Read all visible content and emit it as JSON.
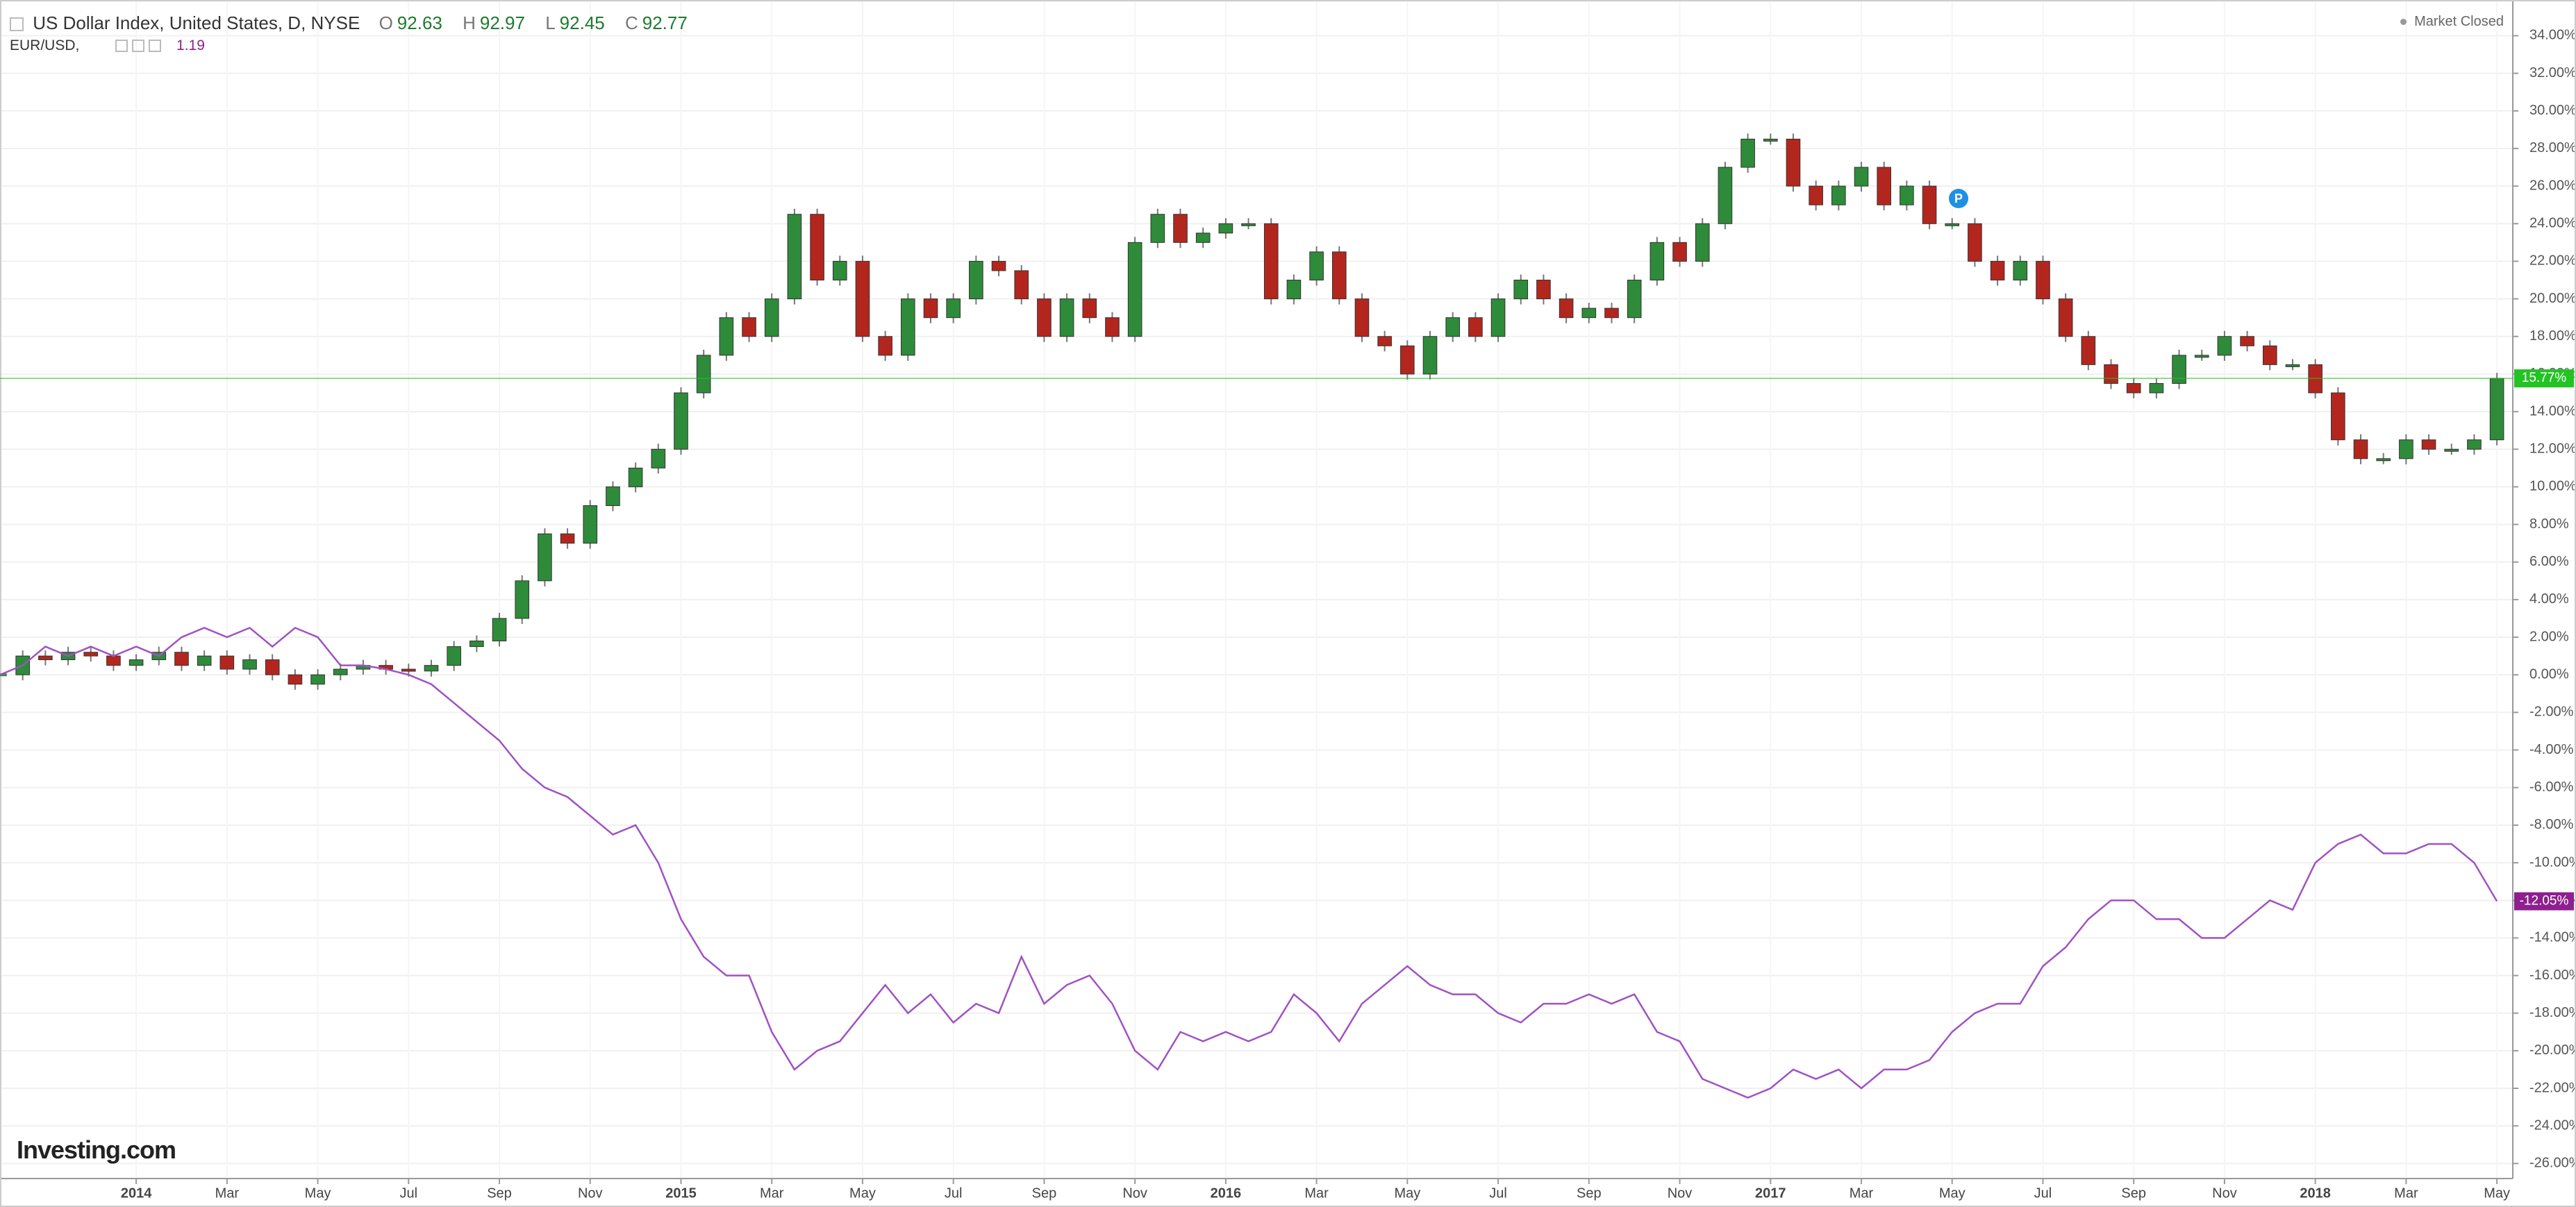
{
  "chart_data": {
    "type": "candle-line",
    "header": {
      "ohlc": [
        {
          "label": "O",
          "value": 92.63
        },
        {
          "label": "H",
          "value": 92.97
        },
        {
          "label": "L",
          "value": 92.45
        },
        {
          "label": "C",
          "value": 92.77
        }
      ],
      "compare_value": 1.19,
      "status": "Market Closed",
      "logo": "Investing.com",
      "marker": "P"
    },
    "xlim": [
      0,
      110.7
    ],
    "xticks": [
      {
        "value": 6,
        "label": "2014"
      },
      {
        "value": 10,
        "label": "Mar"
      },
      {
        "value": 14,
        "label": "May"
      },
      {
        "value": 18,
        "label": "Jul"
      },
      {
        "value": 22,
        "label": "Sep"
      },
      {
        "value": 26,
        "label": "Nov"
      },
      {
        "value": 30,
        "label": "2015"
      },
      {
        "value": 34,
        "label": "Mar"
      },
      {
        "value": 38,
        "label": "May"
      },
      {
        "value": 42,
        "label": "Jul"
      },
      {
        "value": 46,
        "label": "Sep"
      },
      {
        "value": 50,
        "label": "Nov"
      },
      {
        "value": 54,
        "label": "2016"
      },
      {
        "value": 58,
        "label": "Mar"
      },
      {
        "value": 62,
        "label": "May"
      },
      {
        "value": 66,
        "label": "Jul"
      },
      {
        "value": 70,
        "label": "Sep"
      },
      {
        "value": 74,
        "label": "Nov"
      },
      {
        "value": 78,
        "label": "2017"
      },
      {
        "value": 82,
        "label": "Mar"
      },
      {
        "value": 86,
        "label": "May"
      },
      {
        "value": 90,
        "label": "Jul"
      },
      {
        "value": 94,
        "label": "Sep"
      },
      {
        "value": 98,
        "label": "Nov"
      },
      {
        "value": 102,
        "label": "2018"
      },
      {
        "value": 106,
        "label": "Mar"
      },
      {
        "value": 110,
        "label": "May"
      }
    ],
    "ylim": [
      -26.8,
      35.9
    ],
    "yticks": [
      {
        "value": 34,
        "label": "34.00%"
      },
      {
        "value": 32,
        "label": "32.00%"
      },
      {
        "value": 30,
        "label": "30.00%"
      },
      {
        "value": 28,
        "label": "28.00%"
      },
      {
        "value": 26,
        "label": "26.00%"
      },
      {
        "value": 24,
        "label": "24.00%"
      },
      {
        "value": 22,
        "label": "22.00%"
      },
      {
        "value": 20,
        "label": "20.00%"
      },
      {
        "value": 18,
        "label": "18.00%"
      },
      {
        "value": 16,
        "label": "16.00%"
      },
      {
        "value": 14,
        "label": "14.00%"
      },
      {
        "value": 12,
        "label": "12.00%"
      },
      {
        "value": 10,
        "label": "10.00%"
      },
      {
        "value": 8,
        "label": "8.00%"
      },
      {
        "value": 6,
        "label": "6.00%"
      },
      {
        "value": 4,
        "label": "4.00%"
      },
      {
        "value": 2,
        "label": "2.00%"
      },
      {
        "value": 0,
        "label": "0.00%"
      },
      {
        "value": -2,
        "label": "-2.00%"
      },
      {
        "value": -4,
        "label": "-4.00%"
      },
      {
        "value": -6,
        "label": "-6.00%"
      },
      {
        "value": -8,
        "label": "-8.00%"
      },
      {
        "value": -10,
        "label": "-10.00%"
      },
      {
        "value": -12,
        "label": "-12.00%"
      },
      {
        "value": -14,
        "label": "-14.00%"
      },
      {
        "value": -16,
        "label": "-16.00%"
      },
      {
        "value": -18,
        "label": "-18.00%"
      },
      {
        "value": -20,
        "label": "-20.00%"
      },
      {
        "value": -22,
        "label": "-22.00%"
      },
      {
        "value": -24,
        "label": "-24.00%"
      },
      {
        "value": -26,
        "label": "-26.00%"
      }
    ],
    "grid": true,
    "series": [
      {
        "name": "US Dollar Index, United States, D, NYSE",
        "style": "candle",
        "color": "#2e8b3a",
        "down_color": "#b3261e",
        "badge_color": "#22c322",
        "values": [
          0,
          1,
          0.8,
          1.2,
          1,
          0.5,
          0.8,
          1.2,
          0.5,
          1,
          0.3,
          0.8,
          0,
          -0.5,
          0,
          0.3,
          0.5,
          0.3,
          0.2,
          0.5,
          1.5,
          1.8,
          3,
          5,
          7.5,
          7,
          9,
          10,
          11,
          12,
          15,
          17,
          19,
          18,
          20,
          24.5,
          21,
          22,
          18,
          17,
          20,
          19,
          20,
          22,
          21.5,
          20,
          18,
          20,
          19,
          18,
          23,
          24.5,
          23,
          23.5,
          24,
          24,
          20,
          21,
          22.5,
          20,
          18,
          17.5,
          16,
          18,
          19,
          18,
          20,
          21,
          20,
          19,
          19.5,
          19,
          21,
          23,
          22,
          24,
          27,
          28.5,
          28.5,
          26,
          25,
          26,
          27,
          25,
          26,
          24,
          24,
          22,
          21,
          22,
          20,
          18,
          16.5,
          15.5,
          15,
          15.5,
          17,
          17,
          18,
          17.5,
          16.5,
          16.5,
          15,
          12.5,
          11.5,
          11.5,
          12.5,
          12,
          12,
          12.5,
          15.77
        ],
        "last_label": "15.77%"
      },
      {
        "name": "EUR/USD,",
        "style": "line",
        "color": "#a052c2",
        "badge_color": "#8e1f8e",
        "values": [
          0,
          0.5,
          1.5,
          1,
          1.5,
          1,
          1.5,
          1,
          2,
          2.5,
          2,
          2.5,
          1.5,
          2.5,
          2,
          0.5,
          0.5,
          0.3,
          0,
          -0.5,
          -1.5,
          -2.5,
          -3.5,
          -5,
          -6,
          -6.5,
          -7.5,
          -8.5,
          -8,
          -10,
          -13,
          -15,
          -16,
          -16,
          -19,
          -21,
          -20,
          -19.5,
          -18,
          -16.5,
          -18,
          -17,
          -18.5,
          -17.5,
          -18,
          -15,
          -17.5,
          -16.5,
          -16,
          -17.5,
          -20,
          -21,
          -19,
          -19.5,
          -19,
          -19.5,
          -19,
          -17,
          -18,
          -19.5,
          -17.5,
          -16.5,
          -15.5,
          -16.5,
          -17,
          -17,
          -18,
          -18.5,
          -17.5,
          -17.5,
          -17,
          -17.5,
          -17,
          -19,
          -19.5,
          -21.5,
          -22,
          -22.5,
          -22,
          -21,
          -21.5,
          -21,
          -22,
          -21,
          -21,
          -20.5,
          -19,
          -18,
          -17.5,
          -17.5,
          -15.5,
          -14.5,
          -13,
          -12,
          -12,
          -13,
          -13,
          -14,
          -14,
          -13,
          -12,
          -12.5,
          -10,
          -9,
          -8.5,
          -9.5,
          -9.5,
          -9,
          -9,
          -10,
          -12.05
        ],
        "last_label": "-12.05%"
      }
    ]
  }
}
